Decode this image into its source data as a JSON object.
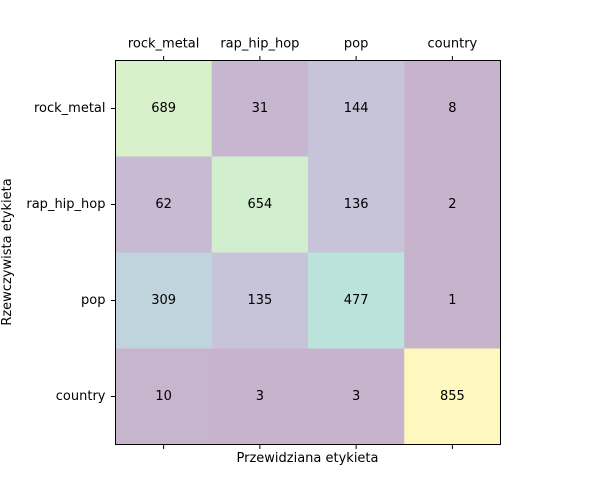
{
  "chart_data": {
    "type": "heatmap",
    "title": "",
    "xlabel": "Przewidziana etykieta",
    "ylabel": "Rzewczywista etykieta",
    "x_categories": [
      "rock_metal",
      "rap_hip_hop",
      "pop",
      "country"
    ],
    "y_categories": [
      "rock_metal",
      "rap_hip_hop",
      "pop",
      "country"
    ],
    "values": [
      [
        689,
        31,
        144,
        8
      ],
      [
        62,
        654,
        136,
        2
      ],
      [
        309,
        135,
        477,
        1
      ],
      [
        10,
        3,
        3,
        855
      ]
    ],
    "colormap": "viridis",
    "alpha": 0.3,
    "vmin": 1,
    "vmax": 855,
    "x_tick_position": "top",
    "grid": false
  }
}
